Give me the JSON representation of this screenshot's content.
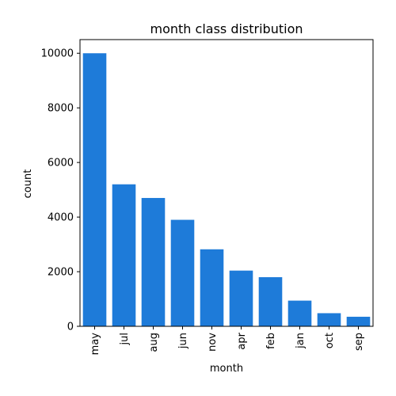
{
  "chart_data": {
    "type": "bar",
    "title": "month class distribution",
    "xlabel": "month",
    "ylabel": "count",
    "categories": [
      "may",
      "jul",
      "aug",
      "jun",
      "nov",
      "apr",
      "feb",
      "jan",
      "oct",
      "sep"
    ],
    "values": [
      10000,
      5200,
      4700,
      3900,
      2820,
      2040,
      1800,
      940,
      480,
      350
    ],
    "ylim": [
      0,
      10500
    ],
    "yticks": [
      0,
      2000,
      4000,
      6000,
      8000,
      10000
    ],
    "bar_color": "#1e7bd9",
    "grid": false,
    "legend": "none"
  }
}
